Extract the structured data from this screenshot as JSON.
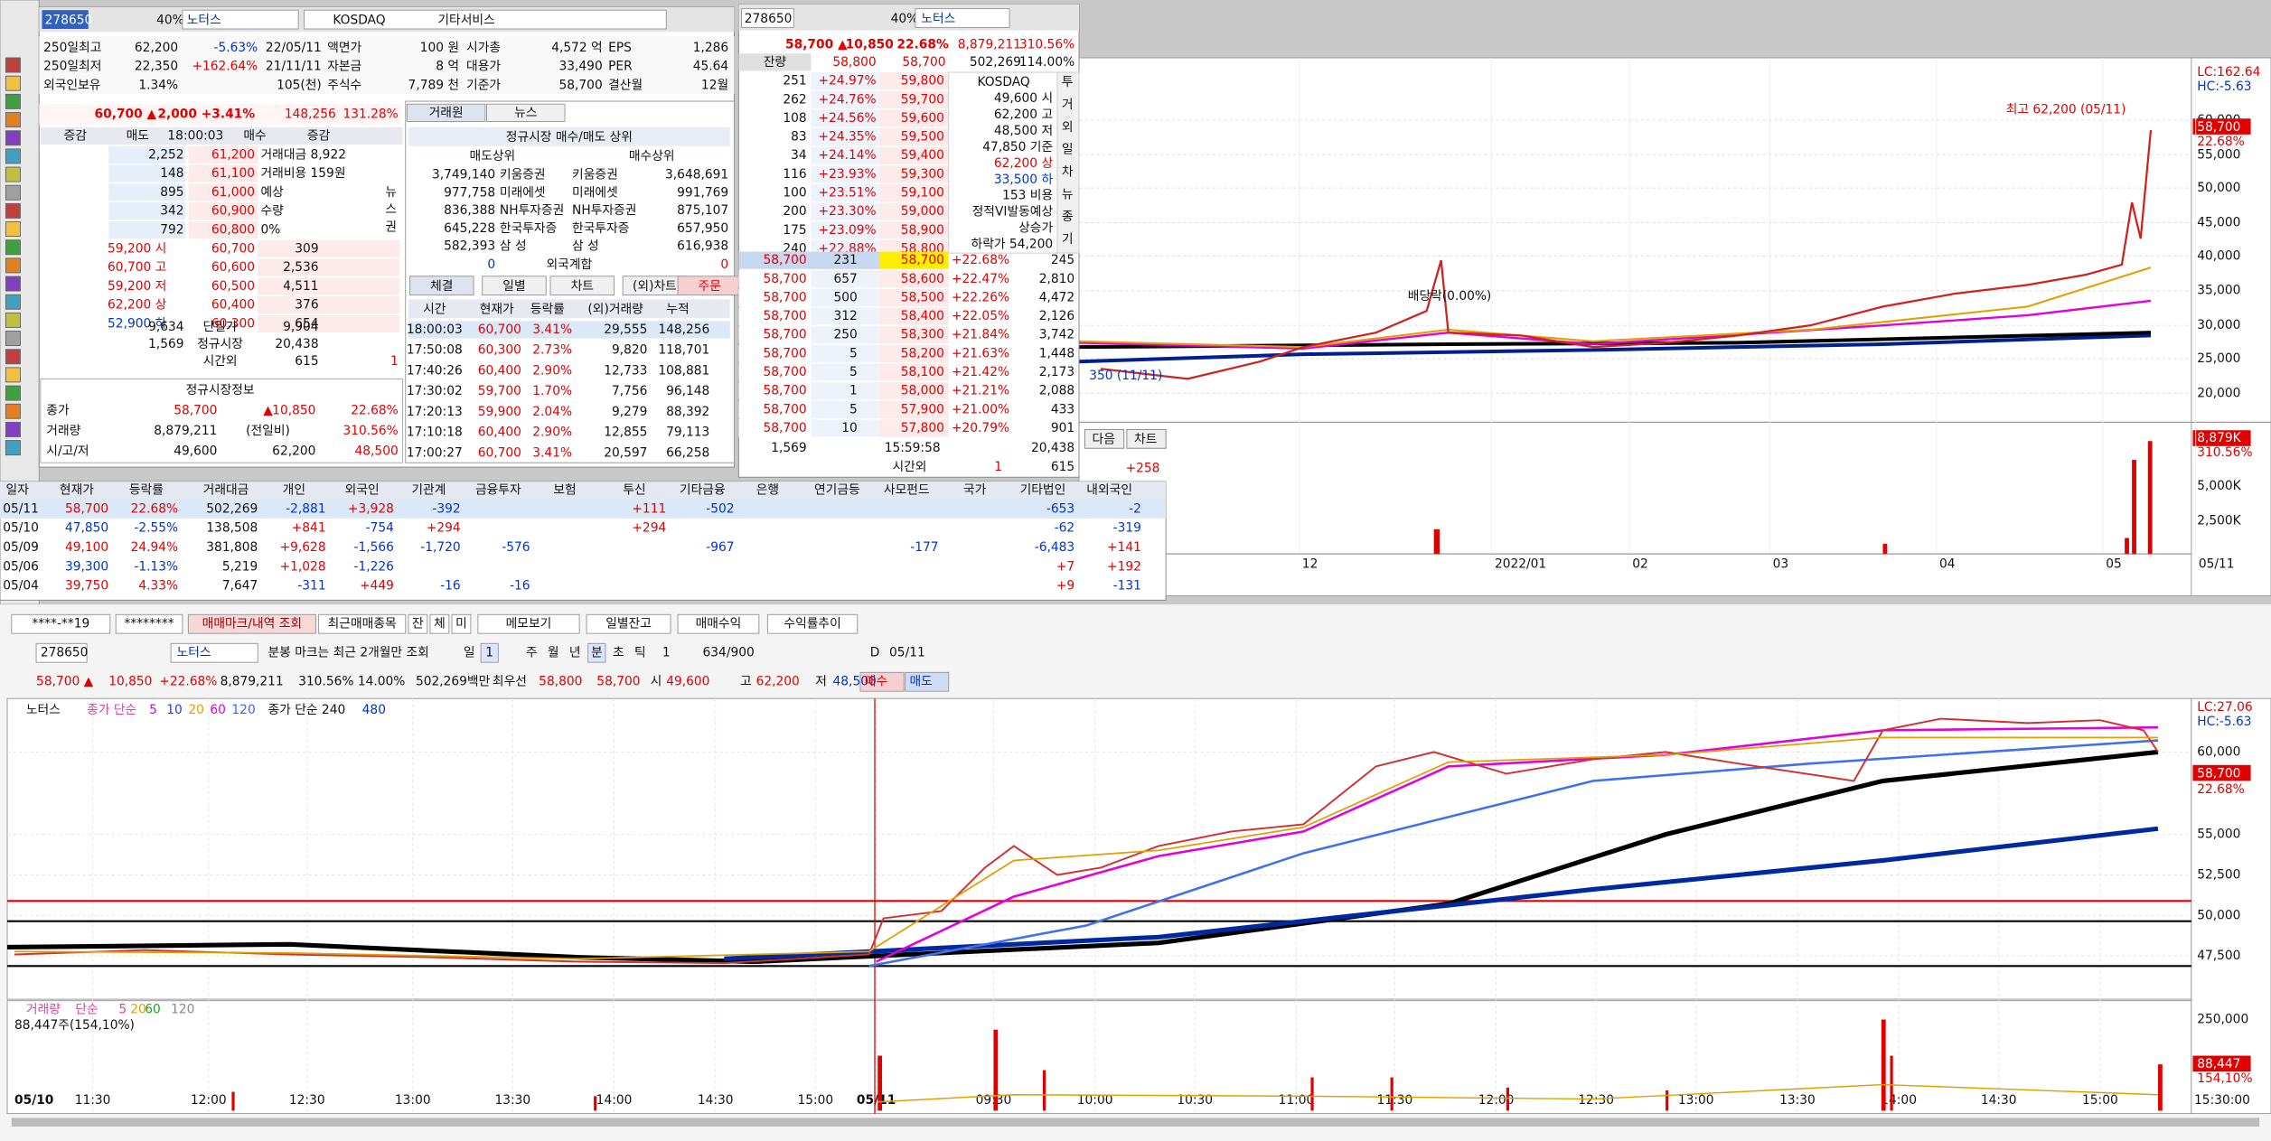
{
  "info": {
    "code": "278650",
    "ratio": "40%",
    "name": "노터스",
    "market": "KOSDAQ",
    "sector": "기타서비스",
    "rows": [
      [
        "250일최고",
        "62,200",
        "-5.63%",
        "22/05/11",
        "액면가",
        "100 원",
        "시가총",
        "4,572 억",
        "EPS",
        "1,286"
      ],
      [
        "250일최저",
        "22,350",
        "+162.64%",
        "21/11/11",
        "자본금",
        "8 억",
        "대용가",
        "33,490",
        "PER",
        "45.64"
      ],
      [
        "외국인보유",
        "1.34%",
        null,
        "105(천)",
        "주식수",
        "7,789 천",
        "기준가",
        "58,700",
        "결산월",
        "12월"
      ]
    ],
    "price": [
      "60,700 ▲",
      "2,000",
      "+3.41%",
      "148,256",
      "131.28%"
    ],
    "book_header": [
      "증감",
      "매도",
      "18:00:03",
      "매수",
      "증감"
    ],
    "asks": [
      [
        "2,252",
        "61,200",
        "거래대금 8,922"
      ],
      [
        "148",
        "61,100",
        "거래비용 159원"
      ],
      [
        "895",
        "61,000",
        "예상"
      ],
      [
        "342",
        "60,900",
        "수량"
      ],
      [
        "792",
        "60,800",
        "0%"
      ]
    ],
    "side_tabs": [
      "뉴",
      "스",
      "권"
    ],
    "bids": [
      [
        "59,200 시",
        "60,700",
        "309"
      ],
      [
        "60,700 고",
        "60,600",
        "2,536"
      ],
      [
        "59,200 저",
        "60,500",
        "4,511"
      ],
      [
        "62,200 상",
        "60,400",
        "376"
      ],
      [
        "52,900 하",
        "60,300",
        "654"
      ]
    ],
    "totals": [
      [
        "9,634",
        "단일가",
        "9,904",
        null
      ],
      [
        "1,569",
        "정규시장",
        "20,438",
        null
      ],
      [
        null,
        "시간외",
        "615",
        "1"
      ]
    ],
    "regular_title": "정규시장정보",
    "regular": [
      [
        "종가",
        "58,700",
        "▲",
        "10,850",
        "22.68%"
      ],
      [
        "거래량",
        "8,879,211",
        "(전일비)",
        null,
        "310.56%"
      ],
      [
        "시/고/저",
        "49,600",
        null,
        "62,200",
        "48,500"
      ]
    ]
  },
  "brokers": {
    "tabs": [
      "거래원",
      "뉴스"
    ],
    "title": "정규시장 매수/매도 상위",
    "header": [
      "매도상위",
      "매수상위"
    ],
    "rows": [
      [
        "3,749,140",
        "키움증권",
        "키움증권",
        "3,648,691"
      ],
      [
        "977,758",
        "미래에셋",
        "미래에셋",
        "991,769"
      ],
      [
        "836,388",
        "NH투자증권",
        "NH투자증권",
        "875,107"
      ],
      [
        "645,228",
        "한국투자증",
        "한국투자증",
        "657,950"
      ],
      [
        "582,393",
        "삼 성",
        "삼 성",
        "616,938"
      ]
    ],
    "foreign": [
      "0",
      "외국계합",
      "0"
    ],
    "tabs2": [
      "체결",
      "일별",
      "차트",
      "(외)차트",
      "주문"
    ],
    "tick_header": [
      "시간",
      "현재가",
      "등락률",
      "(외)거래량",
      "누적"
    ],
    "ticks": [
      [
        "18:00:03",
        "60,700",
        "3.41%",
        "29,555",
        "148,256"
      ],
      [
        "17:50:08",
        "60,300",
        "2.73%",
        "9,820",
        "118,701"
      ],
      [
        "17:40:26",
        "60,400",
        "2.90%",
        "12,733",
        "108,881"
      ],
      [
        "17:30:02",
        "59,700",
        "1.70%",
        "7,756",
        "96,148"
      ],
      [
        "17:20:13",
        "59,900",
        "2.04%",
        "9,279",
        "88,392"
      ],
      [
        "17:10:18",
        "60,400",
        "2.90%",
        "12,855",
        "79,113"
      ],
      [
        "17:00:27",
        "60,700",
        "3.41%",
        "20,597",
        "66,258"
      ]
    ]
  },
  "ladder": {
    "code": "278650",
    "ratio": "40%",
    "name": "노터스",
    "price": [
      "58,700 ▲",
      "10,850",
      "22.68%",
      "8,879,211",
      "310.56%"
    ],
    "sub": [
      "잔량",
      "58,800",
      "58,700",
      "502,269",
      "114.00%"
    ],
    "asks": [
      [
        "251",
        "+24.97%",
        "59,800"
      ],
      [
        "262",
        "+24.76%",
        "59,700"
      ],
      [
        "108",
        "+24.56%",
        "59,600"
      ],
      [
        "83",
        "+24.35%",
        "59,500"
      ],
      [
        "34",
        "+24.14%",
        "59,400"
      ],
      [
        "116",
        "+23.93%",
        "59,300"
      ],
      [
        "100",
        "+23.51%",
        "59,100"
      ],
      [
        "200",
        "+23.30%",
        "59,000"
      ],
      [
        "175",
        "+23.09%",
        "58,900"
      ],
      [
        "240",
        "+22.88%",
        "58,800"
      ]
    ],
    "info": [
      "KOSDAQ",
      "49,600 시",
      "62,200 고",
      "48,500 저",
      "47,850 기준",
      "62,200 상",
      "33,500 하",
      "153 비용",
      "정적VI발동예상",
      "상승가",
      "하락가 54,200"
    ],
    "tabs": [
      "투",
      "거",
      "외",
      "일",
      "차",
      "뉴",
      "종",
      "기"
    ],
    "bids": [
      [
        "58,700",
        "231",
        "58,700",
        "+22.68%",
        "245"
      ],
      [
        "58,700",
        "657",
        "58,600",
        "+22.47%",
        "2,810"
      ],
      [
        "58,700",
        "500",
        "58,500",
        "+22.26%",
        "4,472"
      ],
      [
        "58,700",
        "312",
        "58,400",
        "+22.05%",
        "2,126"
      ],
      [
        "58,700",
        "250",
        "58,300",
        "+21.84%",
        "3,742"
      ],
      [
        "58,700",
        "5",
        "58,200",
        "+21.63%",
        "1,448"
      ],
      [
        "58,700",
        "5",
        "58,100",
        "+21.42%",
        "2,173"
      ],
      [
        "58,700",
        "1",
        "58,000",
        "+21.21%",
        "2,088"
      ],
      [
        "58,700",
        "5",
        "57,900",
        "+21.00%",
        "433"
      ],
      [
        "58,700",
        "10",
        "57,800",
        "+20.79%",
        "901"
      ]
    ],
    "foot": [
      [
        "1,569",
        "15:59:58",
        "20,438"
      ],
      [
        "시간외",
        "1",
        "615"
      ]
    ]
  },
  "daily": {
    "header": [
      "일자",
      "현재가",
      "등락률",
      "거래대금",
      "개인",
      "외국인",
      "기관계",
      "금융투자",
      "보험",
      "투신",
      "기타금융",
      "은행",
      "연기금등",
      "사모펀드",
      "국가",
      "기타법인",
      "내외국인"
    ],
    "rows": [
      [
        "05/11",
        "58,700",
        "22.68%",
        "502,269",
        "-2,881",
        "+3,928",
        "-392",
        null,
        null,
        "+111",
        "-502",
        null,
        null,
        null,
        null,
        "-653",
        "-2"
      ],
      [
        "05/10",
        "47,850",
        "-2.55%",
        "138,508",
        "+841",
        "-754",
        "+294",
        null,
        null,
        "+294",
        null,
        null,
        null,
        null,
        null,
        "-62",
        "-319"
      ],
      [
        "05/09",
        "49,100",
        "24.94%",
        "381,808",
        "+9,628",
        "-1,566",
        "-1,720",
        "-576",
        null,
        null,
        "-967",
        null,
        null,
        "-177",
        null,
        "-6,483",
        "+141"
      ],
      [
        "05/06",
        "39,300",
        "-1.13%",
        "5,219",
        "+1,028",
        "-1,226",
        null,
        null,
        null,
        null,
        null,
        null,
        null,
        null,
        null,
        "+7",
        "+192"
      ],
      [
        "05/04",
        "39,750",
        "4.33%",
        "7,647",
        "-311",
        "+449",
        "-16",
        "-16",
        null,
        null,
        null,
        null,
        null,
        null,
        null,
        "+9",
        "-131"
      ]
    ]
  },
  "daily_chart": {
    "lc": "LC:162.64",
    "hc": "HC:-5.63",
    "current": "58,700",
    "pct": "22.68%",
    "yticks": [
      "60,000",
      "55,000",
      "50,000",
      "45,000",
      "40,000",
      "35,000",
      "30,000",
      "25,000",
      "20,000"
    ],
    "high_note": "최고 62,200 (05/11)",
    "ex_div": "배당락(0.00%)",
    "low_note": "350 (11/11)",
    "vol_labels": [
      "8,879K",
      "310.56%",
      "5,000K",
      "2,500K"
    ],
    "xlabels": [
      "12",
      "2022/01",
      "02",
      "03",
      "04",
      "05",
      "05/11"
    ],
    "buttons": [
      "다음",
      "차트"
    ],
    "diff": "+258"
  },
  "toolbar": {
    "row1": [
      "****-**19",
      "********",
      "매매마크/내역 조회",
      "최근매매종목",
      "잔",
      "체",
      "미",
      "메모보기",
      "일별잔고",
      "매매수익",
      "수익률추이"
    ],
    "row2": [
      "278650",
      "노터스",
      "분봉 마크는 최근 2개월만 조회",
      "일",
      "1",
      "주",
      "월",
      "년",
      "분",
      "초",
      "틱",
      "1",
      "634/900",
      "D",
      "05/11"
    ],
    "row3": [
      "58,700 ▲",
      "10,850",
      "+22.68%",
      "8,879,211",
      "310.56%",
      "14.00%",
      "502,269백만",
      "최우선",
      "58,800",
      "58,700",
      "시",
      "49,600",
      "고",
      "62,200",
      "저",
      "48,500",
      "매수",
      "매도"
    ]
  },
  "minute_chart": {
    "legend": [
      "노터스",
      "종가 단순",
      "5",
      "10",
      "20",
      "60",
      "120",
      "종가 단순 240",
      "480"
    ],
    "lc": "LC:27.06",
    "hc": "HC:-5.63",
    "current": "58,700",
    "pct": "22.68%",
    "yticks": [
      "60,000",
      "55,000",
      "52,500",
      "50,000",
      "47,500"
    ],
    "vol_legend": [
      "거래량",
      "단순",
      "5",
      "20",
      "60",
      "120"
    ],
    "vol_note": "88,447주(154,10%)",
    "vol_ticks": [
      "250,000"
    ],
    "vol_current": "88,447",
    "vol_pct": "154,10%",
    "xlabels": [
      "05/10",
      "11:30",
      "12:00",
      "12:30",
      "13:00",
      "13:30",
      "14:00",
      "14:30",
      "15:00",
      "05/11",
      "09:30",
      "10:00",
      "10:30",
      "11:00",
      "11:30",
      "12:00",
      "12:30",
      "13:00",
      "13:30",
      "14:00",
      "14:30",
      "15:00",
      "15:30:00"
    ]
  }
}
